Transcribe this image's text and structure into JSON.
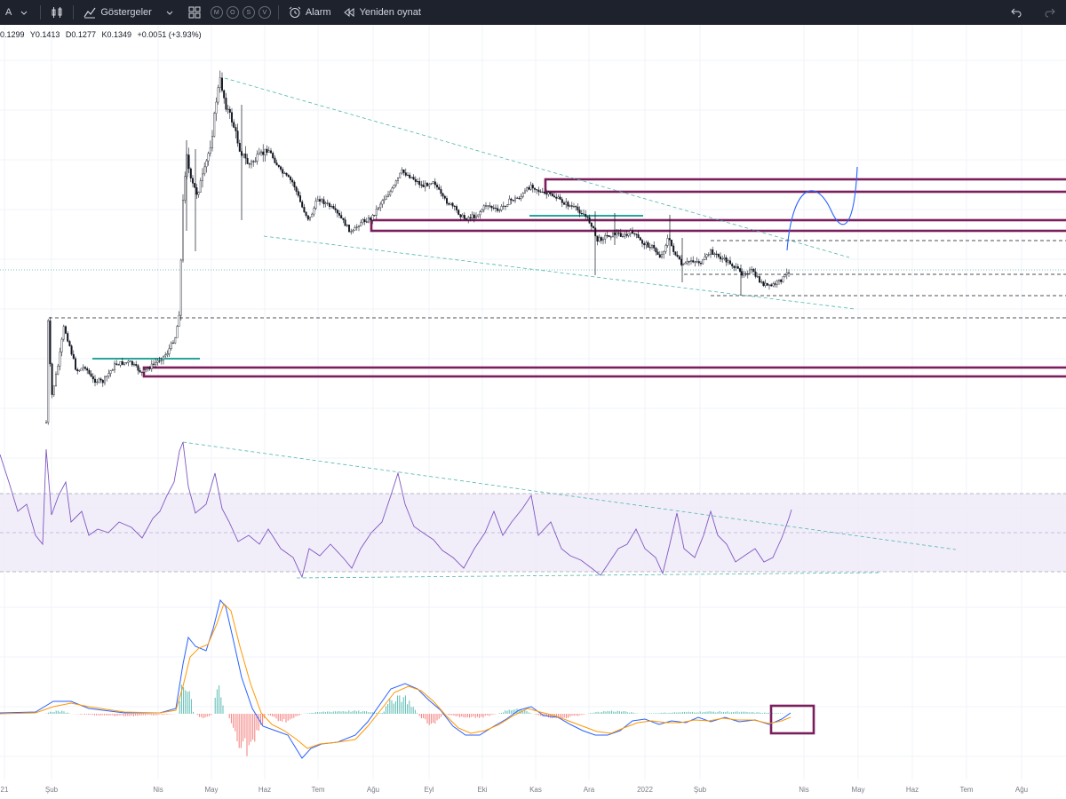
{
  "toolbar": {
    "symbol_fragment": "A",
    "indicators_label": "Göstergeler",
    "alarm_label": "Alarm",
    "replay_label": "Yeniden oynat",
    "template_badges": [
      "M",
      "O",
      "S",
      "V"
    ]
  },
  "ohlc": {
    "open": "0.1299",
    "high": "Y0.1413",
    "low": "D0.1277",
    "close": "K0.1349",
    "change": "+0.0051 (+3.93%)"
  },
  "time_axis": [
    "21",
    "Şub",
    "Nis",
    "May",
    "Haz",
    "Tem",
    "Ağu",
    "Eyl",
    "Eki",
    "Kas",
    "Ara",
    "2022",
    "Şub",
    "Nis",
    "May",
    "Haz",
    "Tem",
    "Ağu"
  ],
  "colors": {
    "zone": "#7b1e5c",
    "trend": "#4db6ac",
    "rsi": "#7e57c2",
    "rsi_band": "#ede7f6",
    "macd": "#2962ff",
    "signal": "#ff9800",
    "hist_up": "#26a69a",
    "hist_down": "#ef5350",
    "candle_up": "#131722",
    "candle_down": "#131722"
  },
  "icons": {
    "dropdown": "chevron-down-icon",
    "candles": "candles-icon",
    "indicators": "indicators-icon",
    "layout": "grid-icon",
    "alarm": "alarm-clock-icon",
    "replay": "replay-icon",
    "undo": "undo-icon",
    "redo": "redo-icon"
  }
}
